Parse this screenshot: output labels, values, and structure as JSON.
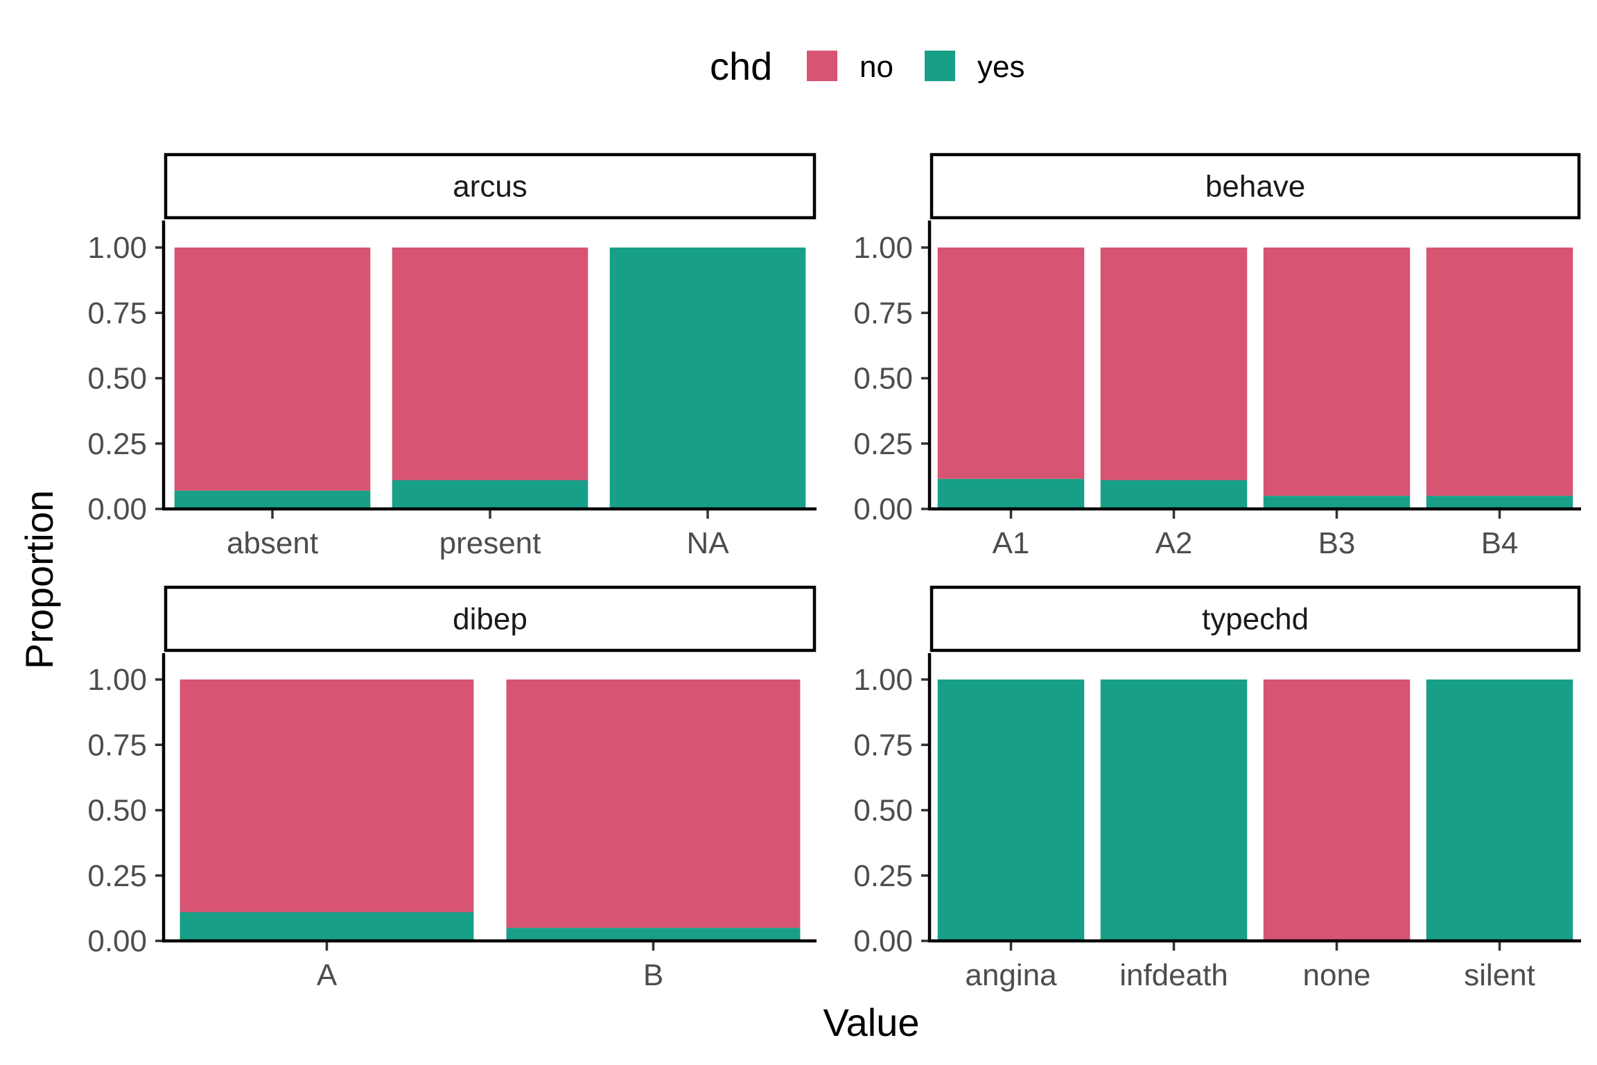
{
  "chart_data": {
    "type": "bar",
    "stacked": true,
    "xlabel": "Value",
    "ylabel": "Proportion",
    "ylim": [
      0,
      1
    ],
    "y_ticks": [
      "0.00",
      "0.25",
      "0.50",
      "0.75",
      "1.00"
    ],
    "grid": false,
    "legend": {
      "title": "chd",
      "placement": "top",
      "entries": [
        {
          "label": "no",
          "color": "#D75473"
        },
        {
          "label": "yes",
          "color": "#17A087"
        }
      ]
    },
    "panels": [
      {
        "title": "arcus",
        "categories": [
          "absent",
          "present",
          "NA"
        ],
        "series": [
          {
            "name": "no",
            "values": [
              0.93,
              0.89,
              0.0
            ]
          },
          {
            "name": "yes",
            "values": [
              0.07,
              0.11,
              1.0
            ]
          }
        ]
      },
      {
        "title": "behave",
        "categories": [
          "A1",
          "A2",
          "B3",
          "B4"
        ],
        "series": [
          {
            "name": "no",
            "values": [
              0.885,
              0.89,
              0.95,
              0.95
            ]
          },
          {
            "name": "yes",
            "values": [
              0.115,
              0.11,
              0.05,
              0.05
            ]
          }
        ]
      },
      {
        "title": "dibep",
        "categories": [
          "A",
          "B"
        ],
        "series": [
          {
            "name": "no",
            "values": [
              0.89,
              0.95
            ]
          },
          {
            "name": "yes",
            "values": [
              0.11,
              0.05
            ]
          }
        ]
      },
      {
        "title": "typechd",
        "categories": [
          "angina",
          "infdeath",
          "none",
          "silent"
        ],
        "series": [
          {
            "name": "no",
            "values": [
              0.0,
              0.0,
              1.0,
              0.0
            ]
          },
          {
            "name": "yes",
            "values": [
              1.0,
              1.0,
              0.0,
              1.0
            ]
          }
        ]
      }
    ]
  }
}
